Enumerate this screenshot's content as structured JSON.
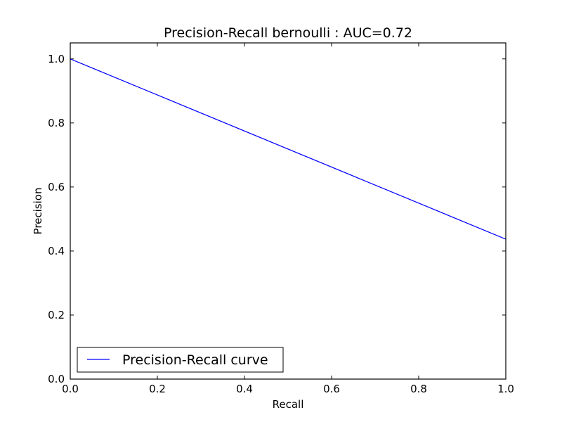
{
  "chart_data": {
    "type": "line",
    "title": "Precision-Recall bernoulli : AUC=0.72",
    "xlabel": "Recall",
    "ylabel": "Precision",
    "xlim": [
      0.0,
      1.0
    ],
    "ylim": [
      0.0,
      1.05
    ],
    "xticks": [
      {
        "value": 0.0,
        "label": "0.0"
      },
      {
        "value": 0.2,
        "label": "0.2"
      },
      {
        "value": 0.4,
        "label": "0.4"
      },
      {
        "value": 0.6,
        "label": "0.6"
      },
      {
        "value": 0.8,
        "label": "0.8"
      },
      {
        "value": 1.0,
        "label": "1.0"
      }
    ],
    "yticks": [
      {
        "value": 0.0,
        "label": "0.0"
      },
      {
        "value": 0.2,
        "label": "0.2"
      },
      {
        "value": 0.4,
        "label": "0.4"
      },
      {
        "value": 0.6,
        "label": "0.6"
      },
      {
        "value": 0.8,
        "label": "0.8"
      },
      {
        "value": 1.0,
        "label": "1.0"
      }
    ],
    "grid": false,
    "legend_position": "lower-left",
    "series": [
      {
        "name": "Precision-Recall curve",
        "color": "#0000ff",
        "x": [
          0.0,
          1.0
        ],
        "y": [
          1.0,
          0.437
        ]
      }
    ]
  }
}
